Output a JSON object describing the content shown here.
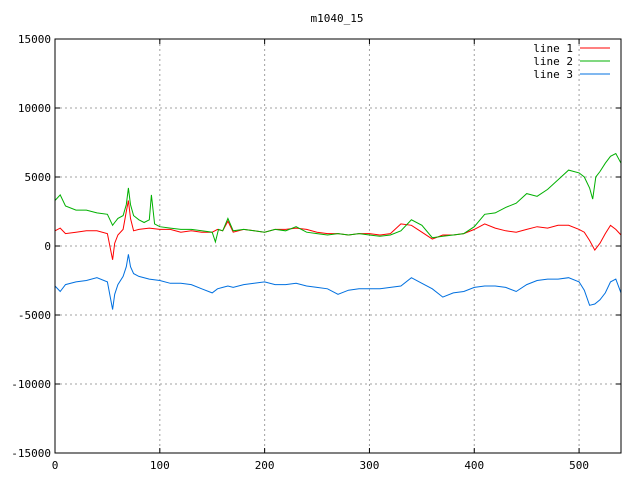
{
  "chart_data": {
    "type": "line",
    "title": "m1040_15",
    "xlabel": "",
    "ylabel": "",
    "xlim": [
      0,
      540
    ],
    "ylim": [
      -15000,
      15000
    ],
    "xticks": [
      0,
      100,
      200,
      300,
      400,
      500
    ],
    "yticks": [
      -15000,
      -10000,
      -5000,
      0,
      5000,
      10000,
      15000
    ],
    "grid": true,
    "legend_position": "top-right",
    "series": [
      {
        "name": "line 1",
        "color": "#ff0000",
        "x": [
          0,
          5,
          10,
          20,
          30,
          40,
          50,
          55,
          57,
          60,
          65,
          68,
          70,
          72,
          75,
          80,
          90,
          100,
          110,
          120,
          130,
          140,
          150,
          155,
          160,
          165,
          170,
          180,
          190,
          200,
          210,
          220,
          230,
          240,
          250,
          260,
          270,
          280,
          290,
          300,
          310,
          320,
          330,
          340,
          350,
          360,
          370,
          380,
          390,
          400,
          410,
          420,
          430,
          440,
          450,
          460,
          470,
          480,
          490,
          500,
          505,
          510,
          515,
          520,
          525,
          530,
          535,
          540
        ],
        "y": [
          1100,
          1300,
          900,
          1000,
          1100,
          1100,
          900,
          -1000,
          200,
          800,
          1200,
          2500,
          3300,
          2000,
          1100,
          1200,
          1300,
          1200,
          1200,
          1000,
          1100,
          1000,
          1000,
          1200,
          1100,
          1800,
          1000,
          1200,
          1100,
          1000,
          1200,
          1200,
          1300,
          1200,
          1000,
          900,
          900,
          800,
          900,
          900,
          800,
          900,
          1600,
          1500,
          1000,
          500,
          800,
          800,
          900,
          1200,
          1600,
          1300,
          1100,
          1000,
          1200,
          1400,
          1300,
          1500,
          1500,
          1200,
          1000,
          400,
          -300,
          200,
          900,
          1500,
          1200,
          800
        ]
      },
      {
        "name": "line 2",
        "color": "#00b000",
        "x": [
          0,
          5,
          10,
          20,
          30,
          40,
          50,
          55,
          57,
          60,
          65,
          68,
          70,
          72,
          75,
          80,
          85,
          90,
          92,
          95,
          100,
          110,
          120,
          130,
          140,
          150,
          153,
          156,
          160,
          165,
          170,
          180,
          190,
          200,
          210,
          220,
          230,
          240,
          250,
          260,
          270,
          280,
          290,
          300,
          310,
          320,
          330,
          340,
          350,
          360,
          370,
          380,
          390,
          400,
          410,
          420,
          430,
          440,
          450,
          460,
          470,
          480,
          490,
          500,
          505,
          510,
          513,
          516,
          520,
          525,
          530,
          535,
          540
        ],
        "y": [
          3300,
          3700,
          2900,
          2600,
          2600,
          2400,
          2300,
          1500,
          1700,
          2000,
          2200,
          3000,
          4200,
          3000,
          2200,
          1900,
          1700,
          1900,
          3700,
          1600,
          1400,
          1300,
          1200,
          1200,
          1100,
          1000,
          300,
          1200,
          1100,
          2000,
          1100,
          1200,
          1100,
          1000,
          1200,
          1100,
          1400,
          1000,
          900,
          800,
          900,
          800,
          900,
          800,
          700,
          800,
          1100,
          1900,
          1500,
          600,
          700,
          800,
          900,
          1400,
          2300,
          2400,
          2800,
          3100,
          3800,
          3600,
          4100,
          4800,
          5500,
          5300,
          5000,
          4200,
          3400,
          5000,
          5400,
          6000,
          6500,
          6700,
          6000
        ]
      },
      {
        "name": "line 3",
        "color": "#0070e0",
        "x": [
          0,
          5,
          10,
          20,
          30,
          40,
          50,
          55,
          57,
          60,
          65,
          68,
          70,
          72,
          75,
          80,
          90,
          100,
          110,
          120,
          130,
          140,
          150,
          155,
          160,
          165,
          170,
          180,
          190,
          200,
          210,
          220,
          230,
          240,
          250,
          260,
          270,
          280,
          290,
          300,
          310,
          320,
          330,
          340,
          350,
          360,
          370,
          380,
          390,
          400,
          410,
          420,
          430,
          440,
          450,
          460,
          470,
          480,
          490,
          500,
          505,
          510,
          515,
          520,
          525,
          530,
          535,
          540
        ],
        "y": [
          -2900,
          -3300,
          -2800,
          -2600,
          -2500,
          -2300,
          -2600,
          -4600,
          -3500,
          -2800,
          -2200,
          -1500,
          -600,
          -1500,
          -2000,
          -2200,
          -2400,
          -2500,
          -2700,
          -2700,
          -2800,
          -3100,
          -3400,
          -3100,
          -3000,
          -2900,
          -3000,
          -2800,
          -2700,
          -2600,
          -2800,
          -2800,
          -2700,
          -2900,
          -3000,
          -3100,
          -3500,
          -3200,
          -3100,
          -3100,
          -3100,
          -3000,
          -2900,
          -2300,
          -2700,
          -3100,
          -3700,
          -3400,
          -3300,
          -3000,
          -2900,
          -2900,
          -3000,
          -3300,
          -2800,
          -2500,
          -2400,
          -2400,
          -2300,
          -2600,
          -3200,
          -4300,
          -4200,
          -3900,
          -3400,
          -2600,
          -2400,
          -3400
        ]
      }
    ]
  }
}
